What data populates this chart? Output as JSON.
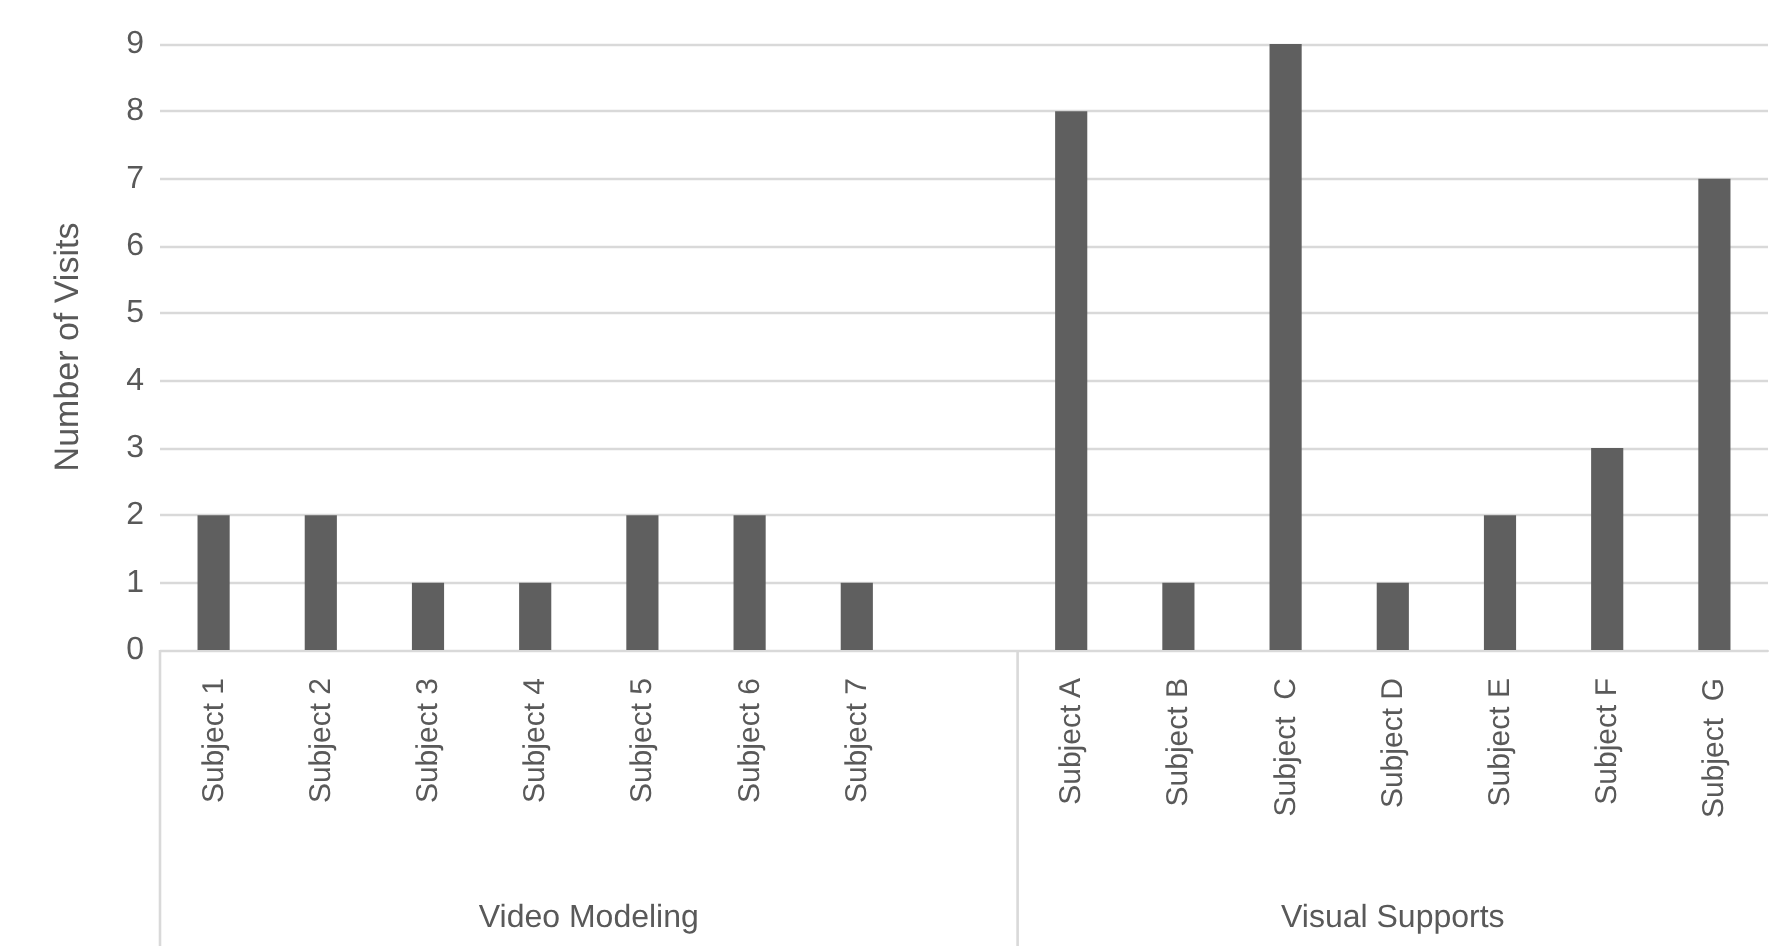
{
  "chart_data": {
    "type": "bar",
    "ylabel": "Number of Visits",
    "categories": [
      "Subject 1",
      "Subject 2",
      "Subject 3",
      "Subject 4",
      "Subject 5",
      "Subject 6",
      "Subject 7",
      null,
      "Subject A",
      "Subject B",
      "Subject  C",
      "Subject D",
      "Subject E",
      "Subject F",
      "Subject  G"
    ],
    "values": [
      2,
      2,
      1,
      1,
      2,
      2,
      1,
      null,
      8,
      1,
      9,
      1,
      2,
      3,
      7
    ],
    "color": "#5f5f5f",
    "annotations": [
      "Video Modeling",
      "Visual Supports"
    ],
    "ylim": [
      0,
      9
    ],
    "yticks": [
      0,
      1,
      2,
      3,
      4,
      5,
      6,
      7,
      8,
      9
    ],
    "grid": "y"
  }
}
